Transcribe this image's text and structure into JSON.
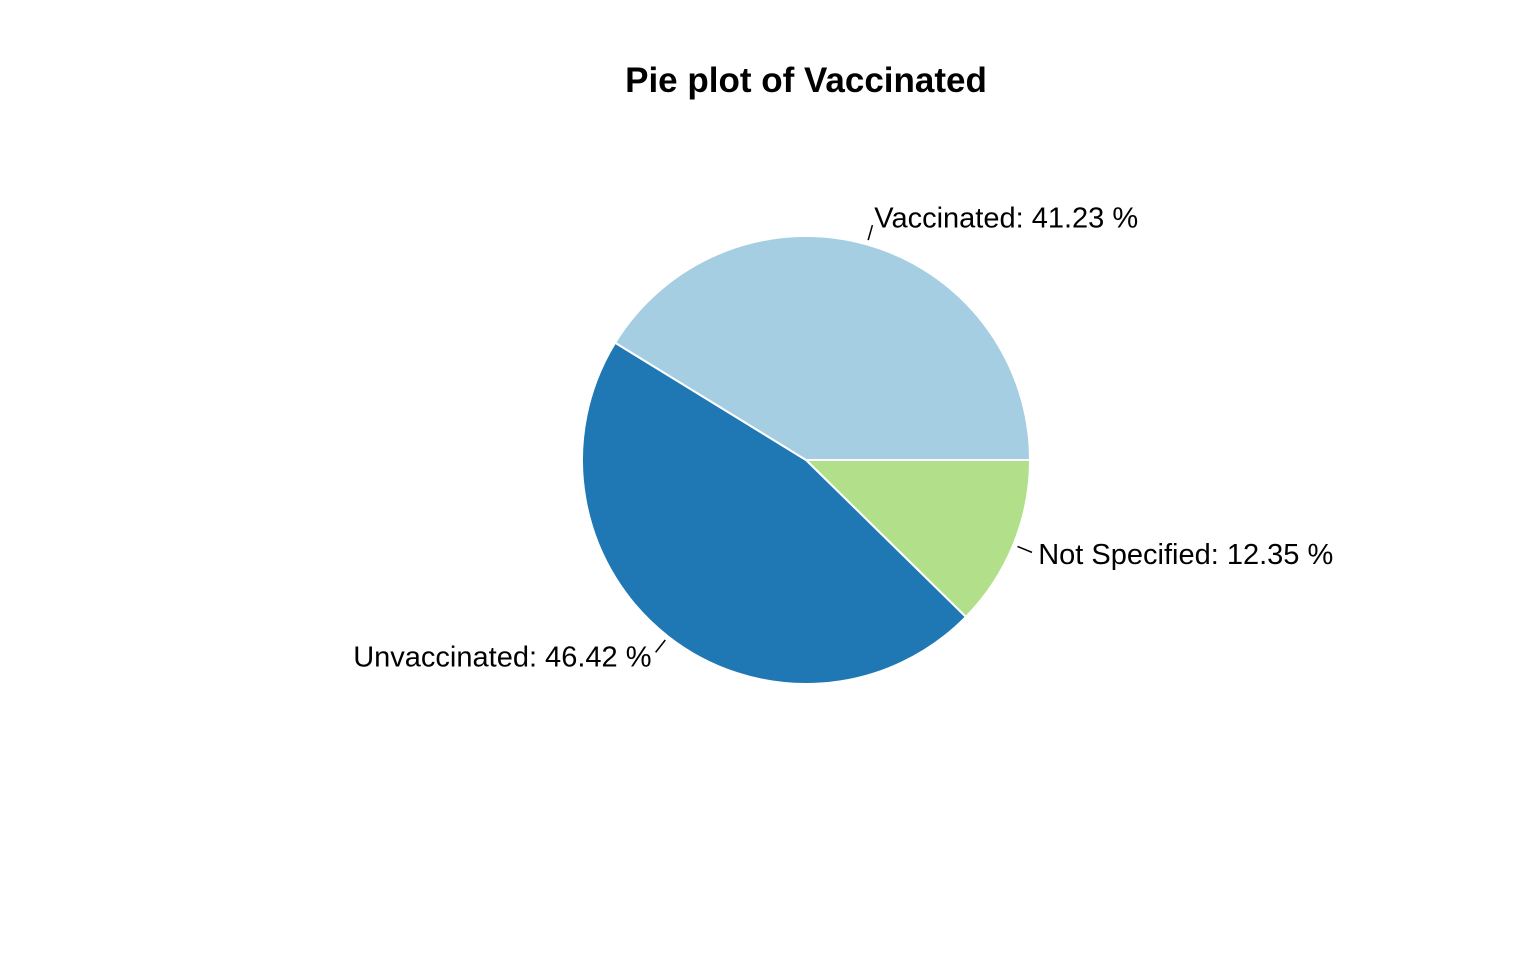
{
  "chart_data": {
    "type": "pie",
    "title": "Pie plot of Vaccinated",
    "slices": [
      {
        "category": "Not Specified",
        "value": 12.35,
        "label": "Not Specified:  12.35 %",
        "color": "#b2df8a"
      },
      {
        "category": "Unvaccinated",
        "value": 46.42,
        "label": "Unvaccinated:  46.42 %",
        "color": "#1f78b4"
      },
      {
        "category": "Vaccinated",
        "value": 41.23,
        "label": "Vaccinated:  41.23 %",
        "color": "#a6cee3"
      }
    ],
    "start_angle": "3 o'clock",
    "direction": "clockwise",
    "legend": "none",
    "label_placement": "outside with leader lines"
  }
}
